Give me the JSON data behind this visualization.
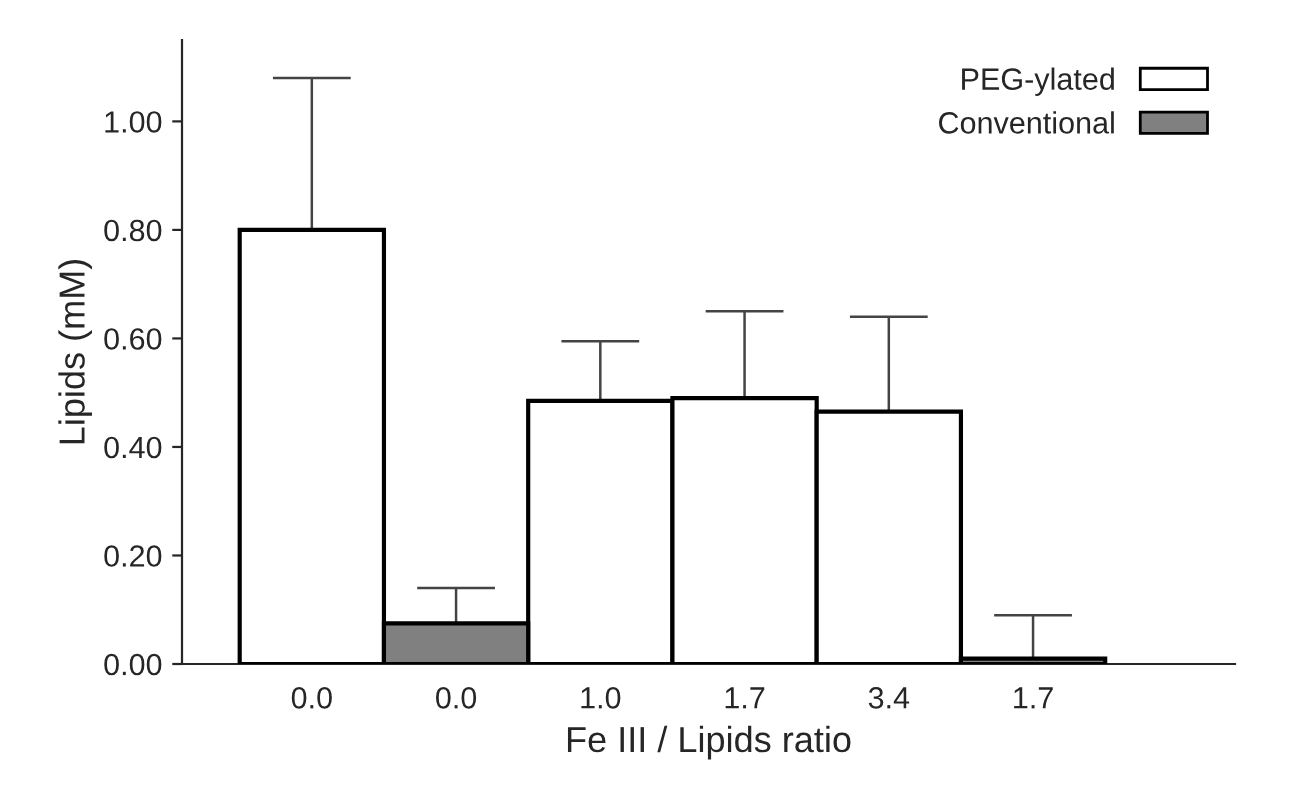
{
  "chart_data": {
    "type": "bar",
    "xlabel": "Fe III / Lipids ratio",
    "ylabel": "Lipids (mM)",
    "categories": [
      "0.0",
      "0.0",
      "1.0",
      "1.7",
      "3.4",
      "1.7"
    ],
    "series": [
      {
        "name": "PEG-ylated",
        "color": "#ffffff",
        "values": [
          0.8,
          null,
          0.485,
          0.49,
          0.465,
          null
        ],
        "errors": [
          [
            0.8,
            1.08
          ],
          null,
          [
            0.485,
            0.595
          ],
          [
            0.49,
            0.65
          ],
          [
            0.465,
            0.64
          ],
          null
        ]
      },
      {
        "name": "Conventional",
        "color": "#808080",
        "values": [
          null,
          0.075,
          null,
          null,
          null,
          0.01
        ],
        "errors": [
          null,
          [
            0.075,
            0.14
          ],
          null,
          null,
          null,
          [
            0.01,
            0.09
          ]
        ]
      }
    ],
    "ylim": [
      0,
      1.15
    ],
    "yticks": [
      {
        "value": 0,
        "label": "0.00"
      },
      {
        "value": 0.2,
        "label": "0.20"
      },
      {
        "value": 0.4,
        "label": "0.40"
      },
      {
        "value": 0.6,
        "label": "0.60"
      },
      {
        "value": 0.8,
        "label": "0.80"
      },
      {
        "value": 1.0,
        "label": "1.00"
      }
    ],
    "grid": false,
    "legend": "top right"
  }
}
